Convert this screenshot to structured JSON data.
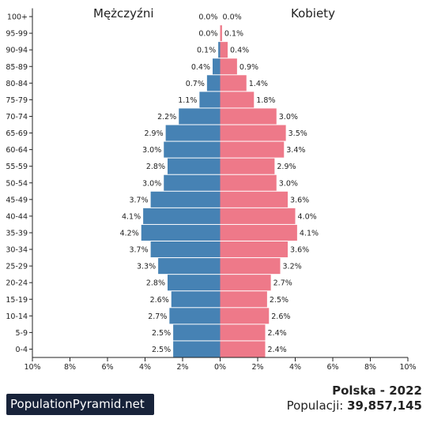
{
  "titles": {
    "left": "Mężczyźni",
    "right": "Kobiety"
  },
  "footer": {
    "brand": "PopulationPyramid.net",
    "country_year": "Polska - 2022",
    "population_label": "Populacji:",
    "population_value": "39,857,145"
  },
  "colors": {
    "male": "#4682b4",
    "female": "#ee7989",
    "brand_bg": "#18233a"
  },
  "chart_data": {
    "type": "bar",
    "orientation": "horizontal",
    "categories": [
      "100+",
      "95-99",
      "90-94",
      "85-89",
      "80-84",
      "75-79",
      "70-74",
      "65-69",
      "60-64",
      "55-59",
      "50-54",
      "45-49",
      "40-44",
      "35-39",
      "30-34",
      "25-29",
      "20-24",
      "15-19",
      "10-14",
      "5-9",
      "0-4"
    ],
    "series": [
      {
        "name": "Mężczyźni",
        "values": [
          0.0,
          0.0,
          0.1,
          0.4,
          0.7,
          1.1,
          2.2,
          2.9,
          3.0,
          2.8,
          3.0,
          3.7,
          4.1,
          4.2,
          3.7,
          3.3,
          2.8,
          2.6,
          2.7,
          2.5,
          2.5
        ],
        "labels": [
          "0.0%",
          "0.0%",
          "0.1%",
          "0.4%",
          "0.7%",
          "1.1%",
          "2.2%",
          "2.9%",
          "3.0%",
          "2.8%",
          "3.0%",
          "3.7%",
          "4.1%",
          "4.2%",
          "3.7%",
          "3.3%",
          "2.8%",
          "2.6%",
          "2.7%",
          "2.5%",
          "2.5%"
        ]
      },
      {
        "name": "Kobiety",
        "values": [
          0.0,
          0.1,
          0.4,
          0.9,
          1.4,
          1.8,
          3.0,
          3.5,
          3.4,
          2.9,
          3.0,
          3.6,
          4.0,
          4.1,
          3.6,
          3.2,
          2.7,
          2.5,
          2.6,
          2.4,
          2.4
        ],
        "labels": [
          "0.0%",
          "0.1%",
          "0.4%",
          "0.9%",
          "1.4%",
          "1.8%",
          "3.0%",
          "3.5%",
          "3.4%",
          "2.9%",
          "3.0%",
          "3.6%",
          "4.0%",
          "4.1%",
          "3.6%",
          "3.2%",
          "2.7%",
          "2.5%",
          "2.6%",
          "2.4%",
          "2.4%"
        ]
      }
    ],
    "xlim": [
      -10,
      10
    ],
    "xticks": [
      -10,
      -8,
      -6,
      -4,
      -2,
      0,
      2,
      4,
      6,
      8,
      10
    ],
    "xtick_labels": [
      "10%",
      "8%",
      "6%",
      "4%",
      "2%",
      "0%",
      "2%",
      "4%",
      "6%",
      "8%",
      "10%"
    ]
  }
}
